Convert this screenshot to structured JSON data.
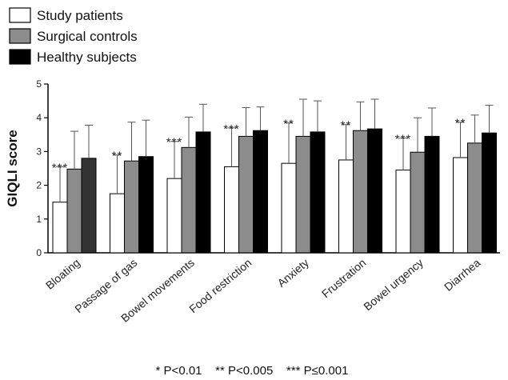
{
  "chart_data": {
    "type": "bar",
    "title": "",
    "xlabel": "",
    "ylabel": "GIQLI score",
    "ylim": [
      0,
      5
    ],
    "yticks": [
      0,
      1,
      2,
      3,
      4,
      5
    ],
    "grid": false,
    "legend_position": "top-left",
    "error_bars": "upper",
    "categories": [
      "Bloating",
      "Passage of gas",
      "Bowel movements",
      "Food restriction",
      "Anxiety",
      "Frustration",
      "Bowel urgency",
      "Diarrhea"
    ],
    "series": [
      {
        "name": "Study patients",
        "color": "#ffffff",
        "values": [
          1.5,
          1.75,
          2.2,
          2.55,
          2.65,
          2.75,
          2.45,
          2.82
        ],
        "errors": [
          1.05,
          1.15,
          1.1,
          1.15,
          1.2,
          1.05,
          0.95,
          1.05
        ]
      },
      {
        "name": "Surgical controls",
        "color": "#8c8c8c",
        "values": [
          2.48,
          2.72,
          3.12,
          3.45,
          3.45,
          3.62,
          2.98,
          3.25
        ],
        "errors": [
          1.12,
          1.15,
          0.9,
          0.85,
          1.1,
          0.85,
          1.02,
          0.83
        ]
      },
      {
        "name": "Healthy subjects",
        "color": "#000000",
        "values": [
          2.8,
          2.85,
          3.58,
          3.62,
          3.58,
          3.67,
          3.45,
          3.55
        ],
        "errors": [
          0.98,
          1.08,
          0.82,
          0.7,
          0.92,
          0.88,
          0.84,
          0.82
        ]
      }
    ],
    "first_bar_color": "#333333",
    "significance": [
      "***",
      "**",
      "***",
      "***",
      "**",
      "**",
      "***",
      "**"
    ],
    "footnote": "* P<0.01    ** P<0.005    *** P≤0.001"
  }
}
